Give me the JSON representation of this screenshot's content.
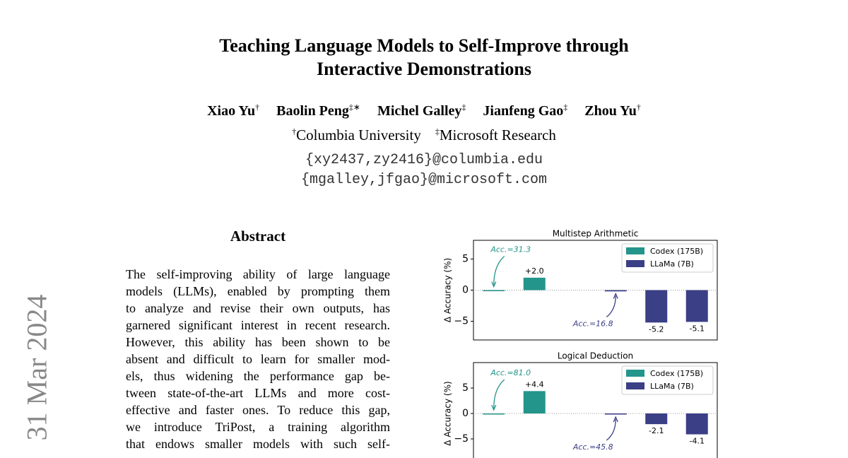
{
  "header": {
    "title_lines": [
      "Teaching Language Models to Self-Improve through",
      "Interactive Demonstrations"
    ],
    "authors": [
      {
        "name": "Xiao Yu",
        "mark": "†"
      },
      {
        "name": "Baolin Peng",
        "mark": "‡∗"
      },
      {
        "name": "Michel Galley",
        "mark": "‡"
      },
      {
        "name": "Jianfeng Gao",
        "mark": "‡"
      },
      {
        "name": "Zhou Yu",
        "mark": "†"
      }
    ],
    "affiliations": [
      {
        "mark": "†",
        "name": "Columbia University"
      },
      {
        "mark": "‡",
        "name": "Microsoft Research"
      }
    ],
    "emails": [
      "{xy2437,zy2416}@columbia.edu",
      "{mgalley,jfgao}@microsoft.com"
    ]
  },
  "sidebar": "31 Mar 2024",
  "abstract": {
    "heading": "Abstract",
    "lines": [
      "The self-improving ability of large language",
      "models (LLMs), enabled by prompting them",
      "to analyze and revise their own outputs, has",
      "garnered significant interest in recent research.",
      "However, this ability has been shown to be",
      "absent and difficult to learn for smaller mod-",
      "els, thus widening the performance gap be-",
      "tween state-of-the-art LLMs and more cost-",
      "effective and faster ones. To reduce this gap,",
      "we introduce TriPost, a training algorithm",
      "that endows smaller models with such self-"
    ]
  },
  "chart_data": [
    {
      "type": "bar",
      "title": "Multistep Arithmetic",
      "y_label": "Δ Accuracy (%)",
      "categories": [
        null,
        null,
        null,
        null,
        null,
        null
      ],
      "series": [
        {
          "name": "Codex (175B)",
          "color": "#24958a",
          "values": [
            0,
            2.0,
            null,
            null,
            null,
            null
          ],
          "value_labels": [
            null,
            "+2.0",
            null,
            null,
            null,
            null
          ]
        },
        {
          "name": "LLaMa (7B)",
          "color": "#3b3f86",
          "values": [
            null,
            null,
            null,
            -0.2,
            -5.2,
            -5.1
          ],
          "value_labels": [
            null,
            null,
            null,
            null,
            "-5.2",
            "-5.1"
          ]
        }
      ],
      "annotations": [
        "Acc.=31.3",
        "Acc.=16.8"
      ],
      "ylim": [
        -8,
        8
      ],
      "yticks": [
        {
          "value": -5,
          "label": "−5"
        },
        0,
        5
      ],
      "legend": "upper right"
    },
    {
      "type": "bar",
      "title": "Logical Deduction",
      "y_label": "Δ Accuracy (%)",
      "categories": [
        null,
        null,
        null,
        null,
        null,
        null
      ],
      "series": [
        {
          "name": "Codex (175B)",
          "color": "#24958a",
          "values": [
            0,
            4.4,
            null,
            null,
            null,
            null
          ],
          "value_labels": [
            null,
            "+4.4",
            null,
            null,
            null,
            null
          ]
        },
        {
          "name": "LLaMa (7B)",
          "color": "#3b3f86",
          "values": [
            null,
            null,
            null,
            -0.1,
            -2.1,
            -4.1
          ],
          "value_labels": [
            null,
            null,
            null,
            null,
            "-2.1",
            "-4.1"
          ]
        }
      ],
      "annotations": [
        "Acc.=81.0",
        "Acc.=45.8"
      ],
      "ylim": [
        -10,
        10
      ],
      "yticks": [
        {
          "value": -5,
          "label": "−5"
        },
        0,
        5
      ],
      "legend": "upper right"
    }
  ]
}
